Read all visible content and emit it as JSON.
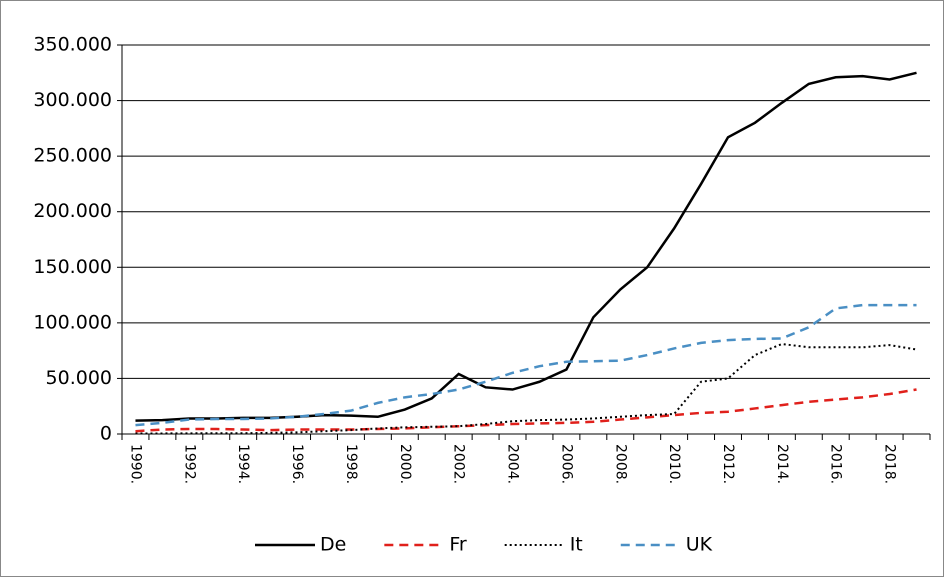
{
  "chart_data": {
    "type": "line",
    "categories": [
      "1990.",
      null,
      "1992.",
      null,
      "1994.",
      null,
      "1996.",
      null,
      "1998.",
      null,
      "2000.",
      null,
      "2002.",
      null,
      "2004.",
      null,
      "2006.",
      null,
      "2008.",
      null,
      "2010.",
      null,
      "2012.",
      null,
      "2014.",
      null,
      "2016.",
      null,
      "2018.",
      null
    ],
    "series": [
      {
        "name": "De",
        "color": "#000000",
        "dash": "solid",
        "values": [
          12000,
          12500,
          14000,
          14000,
          14500,
          14500,
          15500,
          17000,
          16500,
          15500,
          22000,
          32000,
          54000,
          42000,
          40000,
          47000,
          58000,
          105000,
          130000,
          150000,
          185000,
          225000,
          267000,
          280000,
          298000,
          315000,
          321000,
          322000,
          319000,
          325000
        ]
      },
      {
        "name": "Fr",
        "color": "#e0201b",
        "dash": "dashed",
        "values": [
          2500,
          4000,
          4500,
          4500,
          4000,
          3500,
          4000,
          4000,
          4000,
          4500,
          5000,
          6000,
          7000,
          8000,
          9000,
          9500,
          10000,
          11000,
          13000,
          15000,
          17000,
          19000,
          20000,
          23000,
          26000,
          29000,
          31000,
          33000,
          36000,
          40000
        ]
      },
      {
        "name": "It",
        "color": "#000000",
        "dash": "dotted",
        "values": [
          500,
          500,
          600,
          700,
          700,
          1000,
          1500,
          2500,
          3500,
          5000,
          6000,
          6500,
          7000,
          9000,
          11500,
          12500,
          13000,
          14000,
          15500,
          17000,
          18000,
          47000,
          50000,
          71000,
          81000,
          78000,
          78000,
          78000,
          80000,
          76000
        ]
      },
      {
        "name": "UK",
        "color": "#4a8fc4",
        "dash": "dashed",
        "values": [
          8000,
          10000,
          13000,
          13500,
          13500,
          14000,
          15500,
          18000,
          21000,
          28000,
          33000,
          36000,
          40000,
          47000,
          55000,
          61000,
          65000,
          65500,
          66000,
          71000,
          77000,
          82000,
          84500,
          85500,
          86000,
          96000,
          113000,
          116000,
          116000,
          116000
        ]
      }
    ],
    "ylim": [
      0,
      350000
    ],
    "yticks": [
      0,
      {
        "value": 50000,
        "label": "50.000"
      },
      {
        "value": 100000,
        "label": "100.000"
      },
      {
        "value": 150000,
        "label": "150.000"
      },
      {
        "value": 200000,
        "label": "200.000"
      },
      {
        "value": 250000,
        "label": "250.000"
      },
      {
        "value": 300000,
        "label": "300.000"
      },
      {
        "value": 350000,
        "label": "350.000"
      }
    ],
    "grid": true,
    "legend": "bottom"
  }
}
